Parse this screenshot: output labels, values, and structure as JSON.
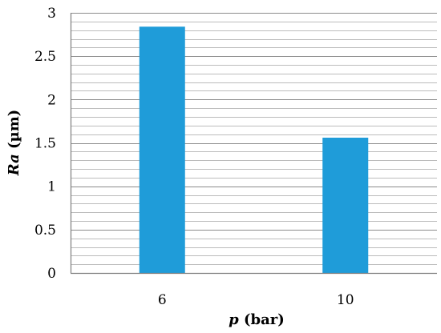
{
  "chart_data": {
    "type": "bar",
    "categories": [
      "6",
      "10"
    ],
    "values": [
      2.84,
      1.56
    ],
    "xlabel_var": "p",
    "xlabel_unit": " (bar)",
    "ylabel_var": "Ra",
    "ylabel_unit": " (µm)",
    "ylim": [
      0,
      3
    ],
    "yticks": [
      "0",
      "0.5",
      "1",
      "1.5",
      "2",
      "2.5",
      "3"
    ],
    "grid": true,
    "bar_color": "#1f9cd9",
    "grid_color": "#a6a6a6"
  }
}
